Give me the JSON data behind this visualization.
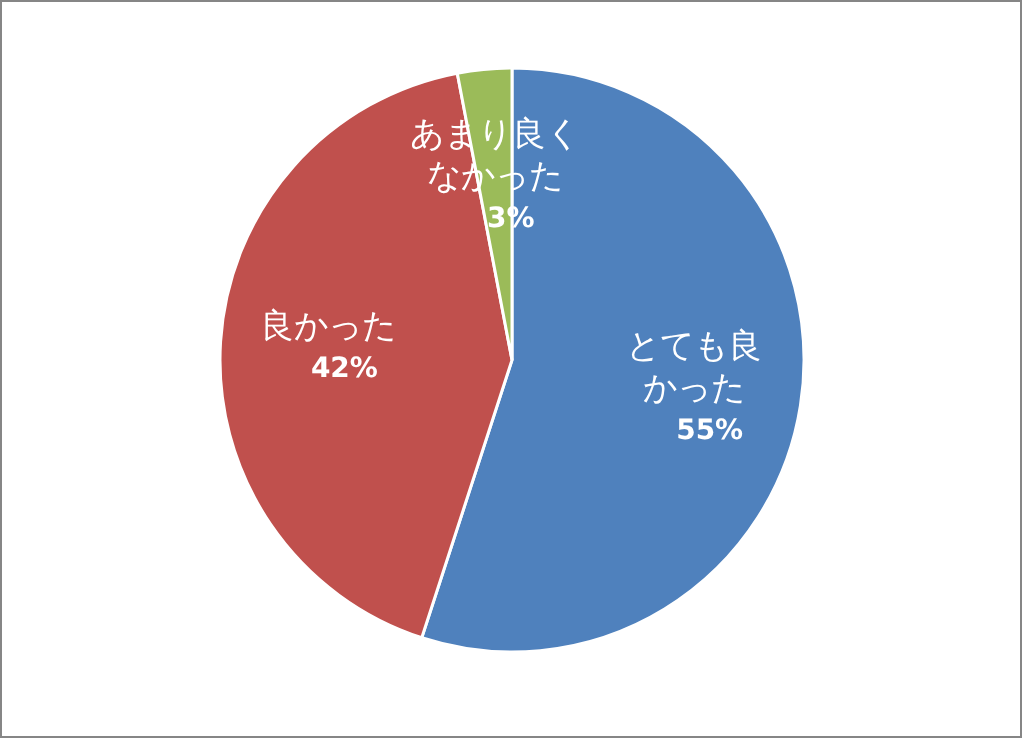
{
  "chart_data": {
    "type": "pie",
    "categories": [
      "とても良かった",
      "良かった",
      "あまり良くなかった"
    ],
    "values": [
      55,
      42,
      3
    ],
    "colors": [
      "#4f81bd",
      "#c0504d",
      "#9bbb59"
    ],
    "value_labels": [
      "55%",
      "42%",
      "3%"
    ]
  }
}
